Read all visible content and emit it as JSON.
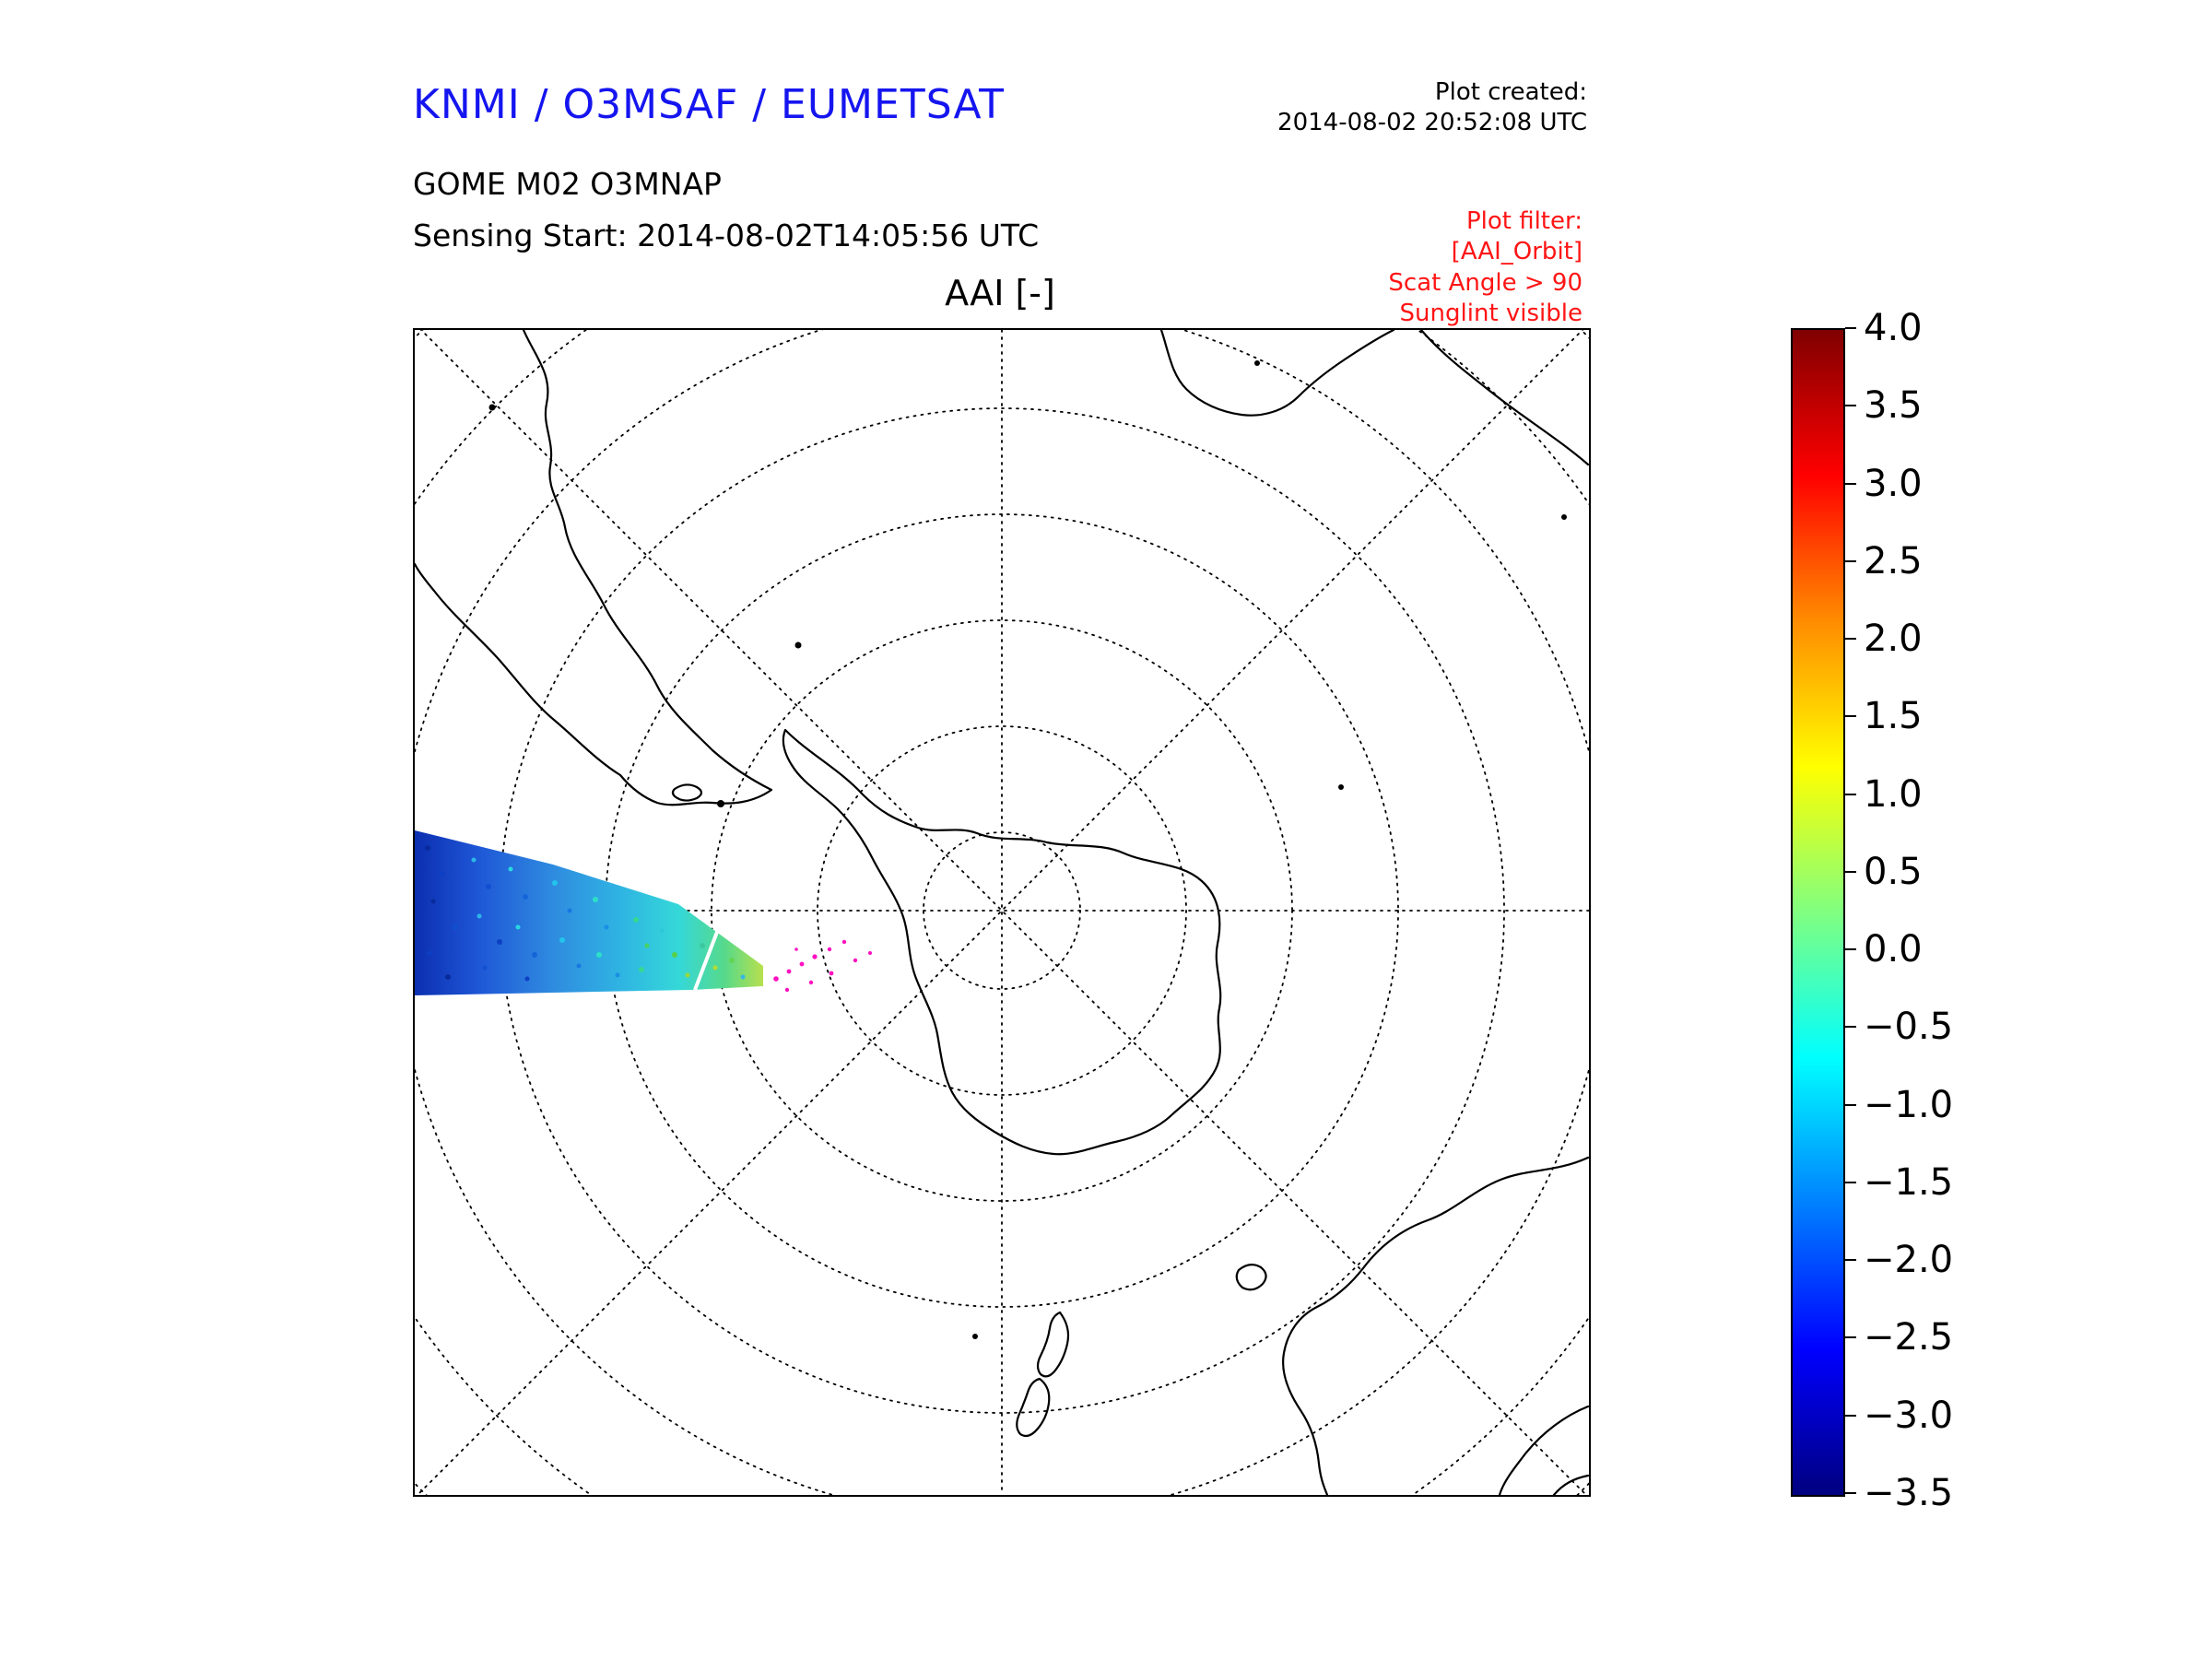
{
  "header": {
    "org_title": "KNMI / O3MSAF / EUMETSAT",
    "plot_created_label": "Plot created:",
    "plot_created_value": "2014-08-02 20:52:08 UTC",
    "instrument": "GOME M02 O3MNAP",
    "sensing_start": "Sensing Start: 2014-08-02T14:05:56 UTC",
    "plot_filter": {
      "label": "Plot filter:",
      "lines": [
        "[AAI_Orbit]",
        "Scat Angle > 90",
        "Sunglint visible"
      ]
    }
  },
  "map": {
    "title": "AAI [-]",
    "projection_note": "south polar view with dotted graticule and coastlines",
    "data_swath_note": "single orbit swath, mostly blue/cyan values with sparse magenta flagged pixels"
  },
  "colorbar": {
    "colormap": "jet",
    "max": 4.0,
    "min": -3.5,
    "ticks": [
      "4.0",
      "3.5",
      "3.0",
      "2.5",
      "2.0",
      "1.5",
      "1.0",
      "0.5",
      "0.0",
      "−0.5",
      "−1.0",
      "−1.5",
      "−2.0",
      "−2.5",
      "−3.0",
      "−3.5"
    ]
  },
  "colors": {
    "title_blue": "#1515f0",
    "filter_red": "#ff1414",
    "coastline": "#000000",
    "colorbar_top": "#800000",
    "colorbar_bottom": "#000080"
  }
}
